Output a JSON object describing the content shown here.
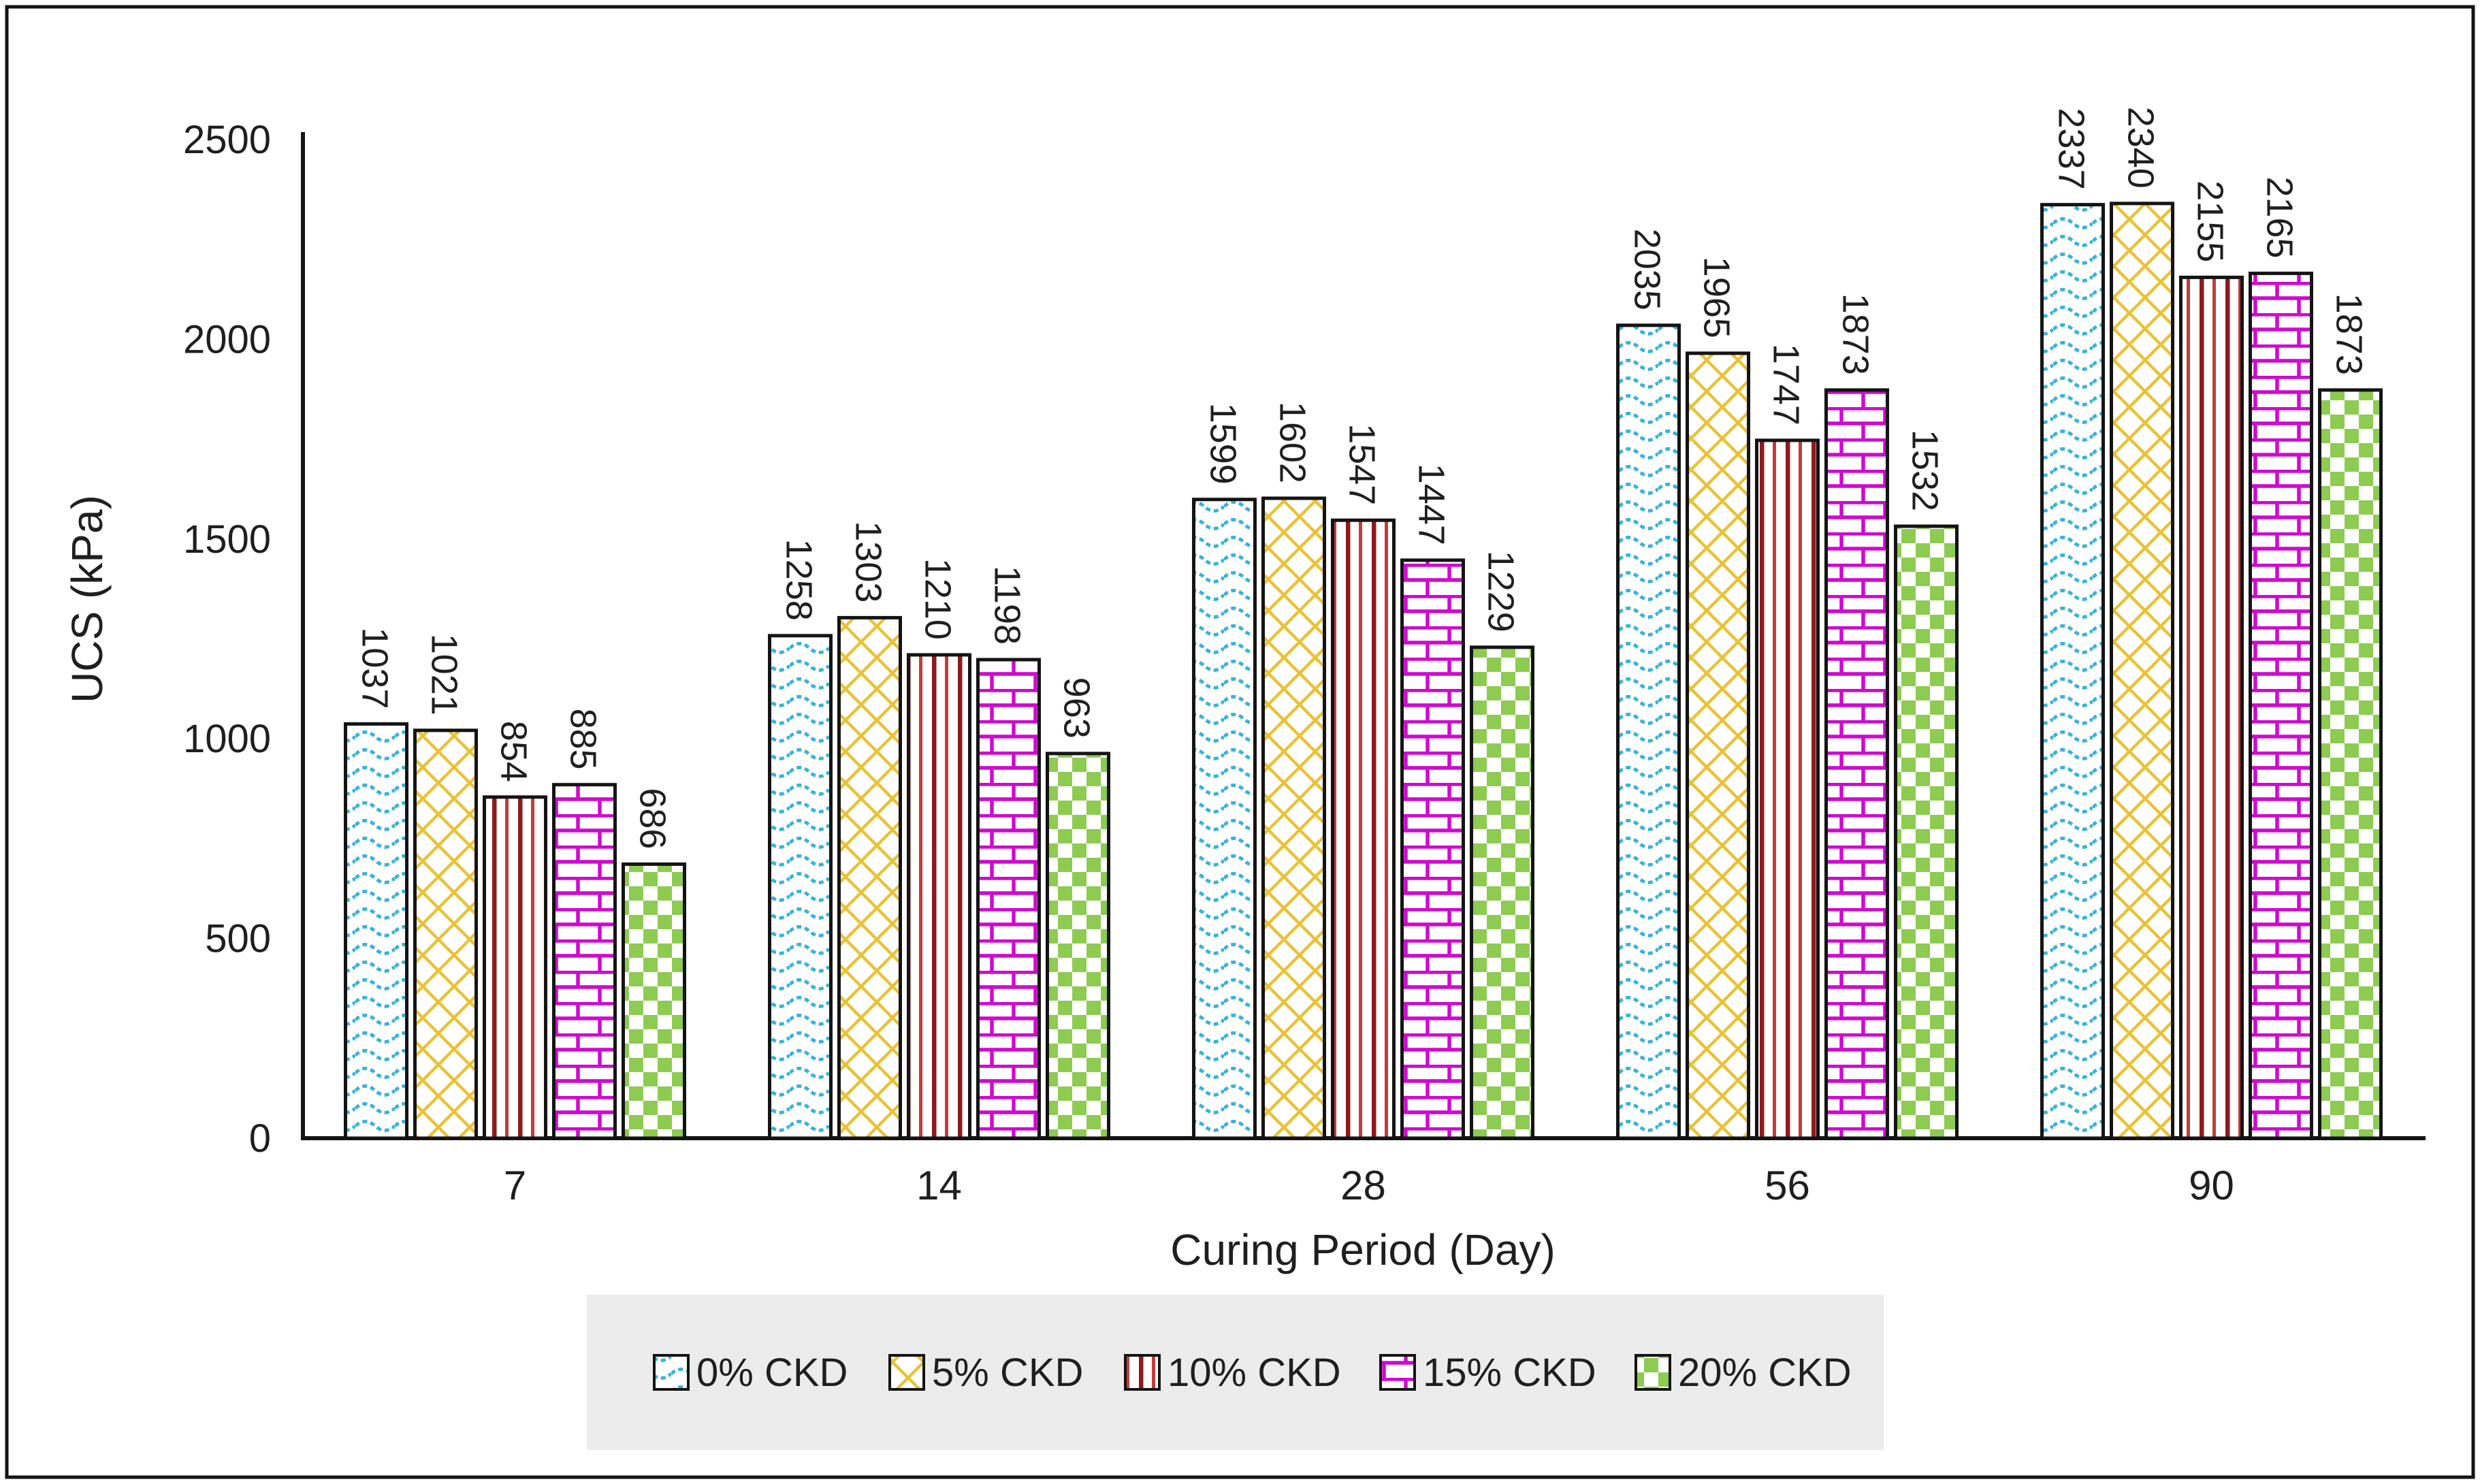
{
  "chart_data": {
    "type": "bar",
    "title": "",
    "xlabel": "Curing Period (Day)",
    "ylabel": "UCS (kPa)",
    "ylim": [
      0,
      2500
    ],
    "y_tick_step": 500,
    "y_ticks": [
      0,
      500,
      1000,
      1500,
      2000,
      2500
    ],
    "grid": false,
    "legend_position": "bottom",
    "legend_bg": "#ECECEC",
    "bar_outline": "#141414",
    "categories": [
      "7",
      "14",
      "28",
      "56",
      "90"
    ],
    "series": [
      {
        "name": "0% CKD",
        "pattern": "wave",
        "color": "#38B3DC",
        "values": [
          1037,
          1258,
          1599,
          2035,
          2337
        ]
      },
      {
        "name": "5% CKD",
        "pattern": "crosshatch",
        "color": "#E9C235",
        "values": [
          1021,
          1303,
          1602,
          1965,
          2340
        ]
      },
      {
        "name": "10% CKD",
        "pattern": "vstripes",
        "color": "#8E1A1E",
        "color2": "#C43C3C",
        "values": [
          854,
          1210,
          1547,
          1747,
          2155
        ]
      },
      {
        "name": "15% CKD",
        "pattern": "brick",
        "color": "#CF0ACF",
        "values": [
          885,
          1198,
          1447,
          1873,
          2165
        ]
      },
      {
        "name": "20% CKD",
        "pattern": "checker",
        "color": "#8DCB51",
        "values": [
          686,
          963,
          1229,
          1532,
          1873
        ]
      }
    ]
  }
}
